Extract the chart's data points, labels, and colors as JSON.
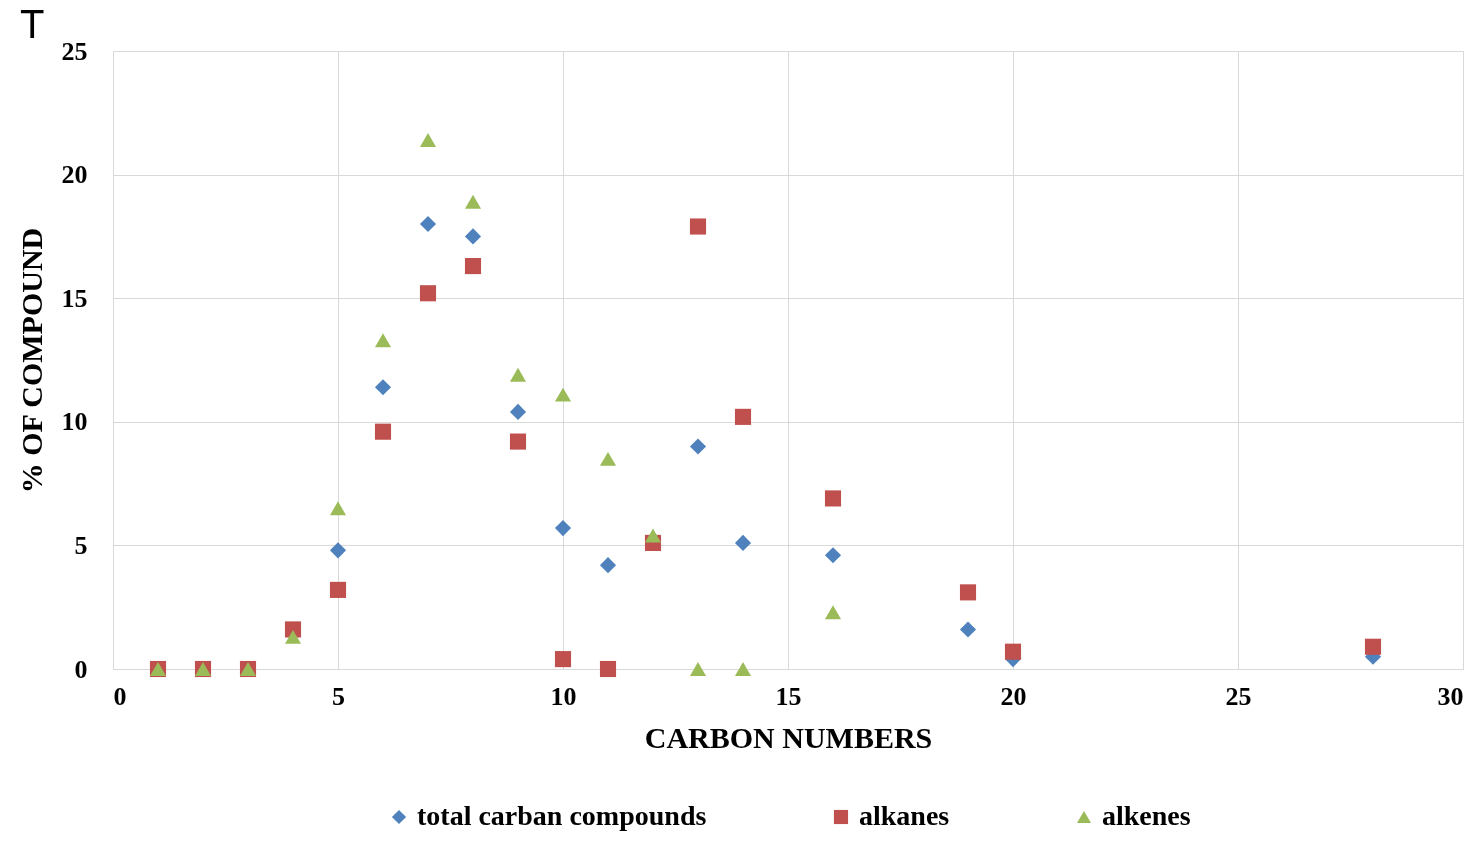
{
  "chart_data": {
    "type": "scatter",
    "xlabel": "CARBON NUMBERS",
    "ylabel": "% OF COMPOUND",
    "annotations": [
      "T"
    ],
    "xlim": [
      0,
      30
    ],
    "xticks": [
      0,
      5,
      10,
      15,
      20,
      25,
      30
    ],
    "ylim": [
      0,
      25
    ],
    "yticks": [
      0,
      5,
      10,
      15,
      20,
      25
    ],
    "grid": true,
    "legend": "bottom",
    "series": [
      {
        "name": "total carban compounds",
        "color": "#4f81bd",
        "marker": "diamond",
        "x": [
          5,
          6,
          7,
          8,
          9,
          10,
          11,
          13,
          14,
          16,
          19,
          20,
          28
        ],
        "values": [
          4.8,
          11.4,
          18.0,
          17.5,
          10.4,
          5.7,
          4.2,
          9.0,
          5.1,
          4.6,
          1.6,
          0.4,
          0.5
        ]
      },
      {
        "name": "alkanes",
        "color": "#c0504d",
        "marker": "square",
        "x": [
          1,
          2,
          3,
          4,
          5,
          6,
          7,
          8,
          9,
          10,
          11,
          12,
          13,
          14,
          16,
          19,
          20,
          28
        ],
        "values": [
          0,
          0,
          0,
          1.6,
          3.2,
          9.6,
          15.2,
          16.3,
          9.2,
          0.4,
          0,
          5.1,
          17.9,
          10.2,
          6.9,
          3.1,
          0.7,
          0.9
        ]
      },
      {
        "name": "alkenes",
        "color": "#9bbb59",
        "marker": "triangle",
        "x": [
          1,
          2,
          3,
          4,
          5,
          6,
          7,
          8,
          9,
          10,
          11,
          12,
          13,
          14,
          16
        ],
        "values": [
          0,
          0,
          0,
          1.3,
          6.5,
          13.3,
          21.4,
          18.9,
          11.9,
          11.1,
          8.5,
          5.4,
          0,
          0,
          2.3
        ]
      }
    ]
  }
}
